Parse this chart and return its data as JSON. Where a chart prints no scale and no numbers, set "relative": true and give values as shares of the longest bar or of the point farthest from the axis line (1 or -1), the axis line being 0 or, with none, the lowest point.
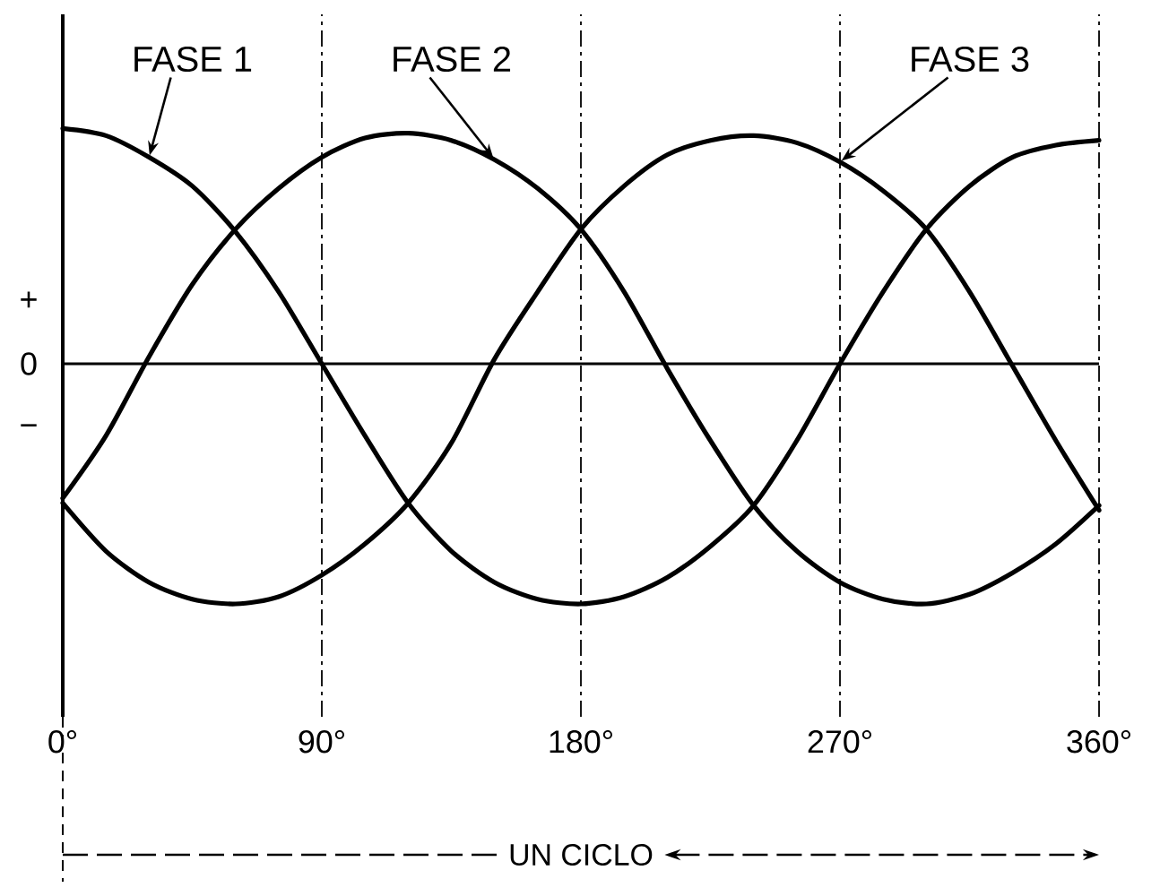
{
  "chart_data": {
    "type": "line",
    "relative": true,
    "x": [
      0,
      15,
      30,
      45,
      60,
      75,
      90,
      105,
      120,
      135,
      150,
      165,
      180,
      195,
      210,
      225,
      240,
      255,
      270,
      285,
      300,
      315,
      330,
      345,
      360
    ],
    "xlim": [
      0,
      360
    ],
    "xticks": [
      {
        "value": 0,
        "label": "0°"
      },
      {
        "value": 90,
        "label": "90°"
      },
      {
        "value": 180,
        "label": "180°"
      },
      {
        "value": 270,
        "label": "270°"
      },
      {
        "value": 360,
        "label": "360°"
      }
    ],
    "grid": "x",
    "series": [
      {
        "name": "FASE 1",
        "color": "#000000",
        "values": [
          0.98,
          0.95,
          0.86,
          0.74,
          0.55,
          0.3,
          0.0,
          -0.3,
          -0.58,
          -0.78,
          -0.91,
          -0.98,
          -1.0,
          -0.97,
          -0.89,
          -0.76,
          -0.59,
          -0.32,
          0.0,
          0.3,
          0.56,
          0.74,
          0.86,
          0.91,
          0.93
        ]
      },
      {
        "name": "FASE 2",
        "color": "#000000",
        "values": [
          -0.56,
          -0.3,
          0.03,
          0.33,
          0.56,
          0.73,
          0.86,
          0.94,
          0.96,
          0.93,
          0.85,
          0.73,
          0.56,
          0.3,
          -0.02,
          -0.32,
          -0.59,
          -0.78,
          -0.91,
          -0.98,
          -1.0,
          -0.96,
          -0.87,
          -0.75,
          -0.59
        ]
      },
      {
        "name": "FASE 3",
        "color": "#000000",
        "values": [
          -0.58,
          -0.78,
          -0.91,
          -0.98,
          -1.0,
          -0.97,
          -0.88,
          -0.75,
          -0.58,
          -0.33,
          0.02,
          0.3,
          0.56,
          0.74,
          0.87,
          0.93,
          0.95,
          0.92,
          0.84,
          0.72,
          0.56,
          0.3,
          -0.01,
          -0.32,
          -0.61
        ]
      }
    ],
    "ref_lines": [
      {
        "axis": "y",
        "value": 0,
        "label": "0"
      }
    ],
    "annotations": [
      "+",
      "−",
      "UN CICLO"
    ]
  }
}
